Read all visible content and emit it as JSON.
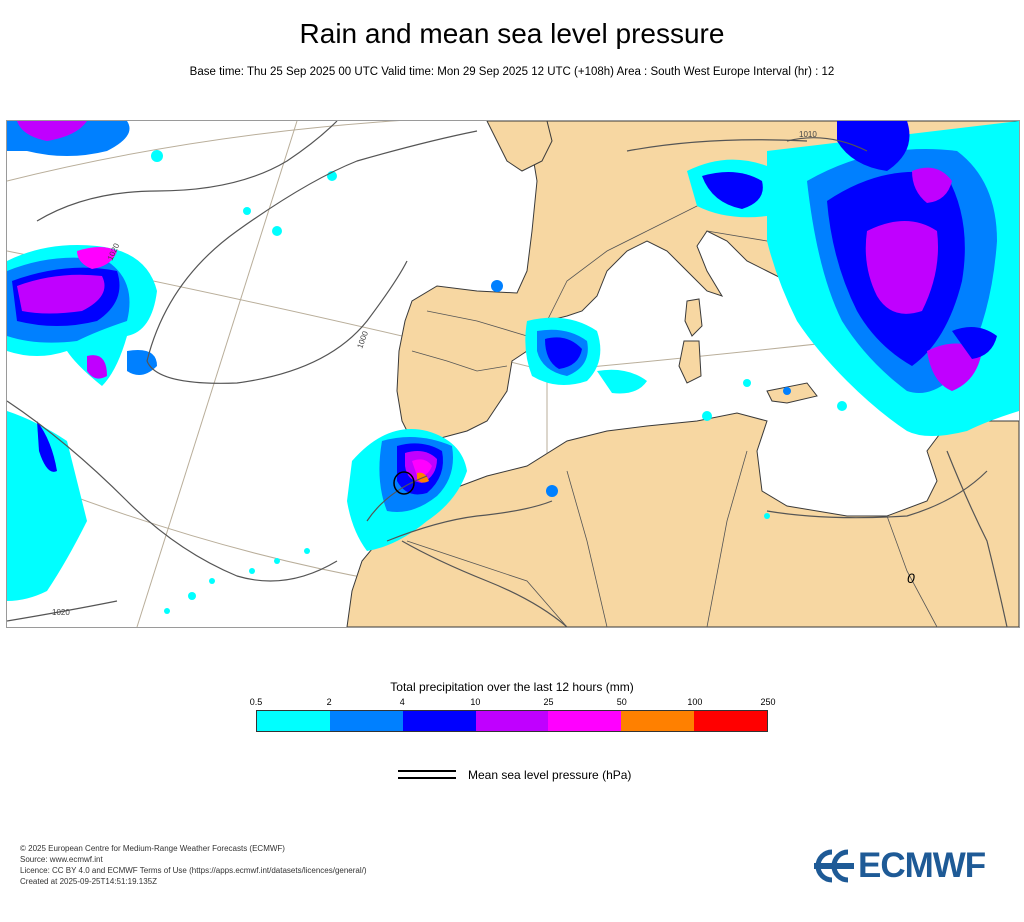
{
  "header": {
    "title": "Rain and mean sea level pressure",
    "subtitle": "Base time: Thu 25 Sep 2025 00 UTC Valid time: Mon 29 Sep 2025 12 UTC (+108h) Area : South West Europe Interval (hr) : 12"
  },
  "map": {
    "area": "South West Europe",
    "isobar_labels": [
      "1020",
      "1020",
      "1020",
      "1020",
      "1020",
      "1020",
      "1000",
      "1010"
    ],
    "low_marker": "0",
    "colors": {
      "land": "#f7d7a2",
      "sea": "#ffffff",
      "border": "#3a3a3a",
      "isobar": "#555555",
      "graticule": "#b9ae9a"
    }
  },
  "legend": {
    "title": "Total precipitation over the last 12 hours (mm)",
    "ticks": [
      "0.5",
      "2",
      "4",
      "10",
      "25",
      "50",
      "100",
      "250"
    ],
    "colors": [
      "#00ffff",
      "#0080ff",
      "#0000ff",
      "#c000ff",
      "#ff00ff",
      "#ff8000",
      "#ff0000"
    ],
    "pressure_label": "Mean sea level pressure (hPa)"
  },
  "footer": {
    "lines": [
      "© 2025 European Centre for Medium-Range Weather Forecasts (ECMWF)",
      "Source: www.ecmwf.int",
      "Licence: CC BY 4.0 and ECMWF Terms of Use (https://apps.ecmwf.int/datasets/licences/general/)",
      "Created at 2025-09-25T14:51:19.135Z"
    ]
  },
  "logo": {
    "text": "ECMWF",
    "color": "#1e5a96"
  }
}
